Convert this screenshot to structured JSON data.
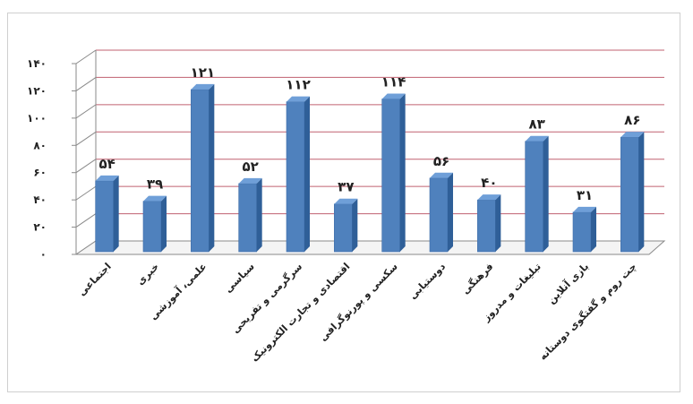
{
  "chart_data": {
    "type": "bar",
    "title": "",
    "xlabel": "",
    "ylabel": "",
    "ylim": [
      0,
      140
    ],
    "yticks": [
      0,
      20,
      40,
      60,
      80,
      100,
      120,
      140
    ],
    "ytick_labels": [
      "۰",
      "۲۰",
      "۴۰",
      "۶۰",
      "۸۰",
      "۱۰۰",
      "۱۲۰",
      "۱۴۰"
    ],
    "grid": true,
    "legend": "none",
    "bar_style": "3d-cylinder-like",
    "colors": {
      "bar": "#4f81bd",
      "bar_top": "#6f9fd8",
      "bar_side": "#2f5f98",
      "grid": "#c06070",
      "axis": "#8a8a8a"
    },
    "categories": [
      "اجتماعی",
      "خبری",
      "علمی، آموزشی",
      "سیاسی",
      "سرگرمی و تفریحی",
      "اقتصادی و تجارت الکترونیک",
      "سکسی و پورنوگرافی",
      "دوستیابی",
      "فرهنگی",
      "تبلیغات و مدروز",
      "بازی آنلاین",
      "چت روم و گفتگوی دوستانه"
    ],
    "values": [
      54,
      39,
      121,
      52,
      112,
      37,
      114,
      56,
      40,
      83,
      31,
      86
    ],
    "data_labels": [
      "۵۴",
      "۳۹",
      "۱۲۱",
      "۵۲",
      "۱۱۲",
      "۳۷",
      "۱۱۴",
      "۵۶",
      "۴۰",
      "۸۳",
      "۳۱",
      "۸۶"
    ]
  }
}
